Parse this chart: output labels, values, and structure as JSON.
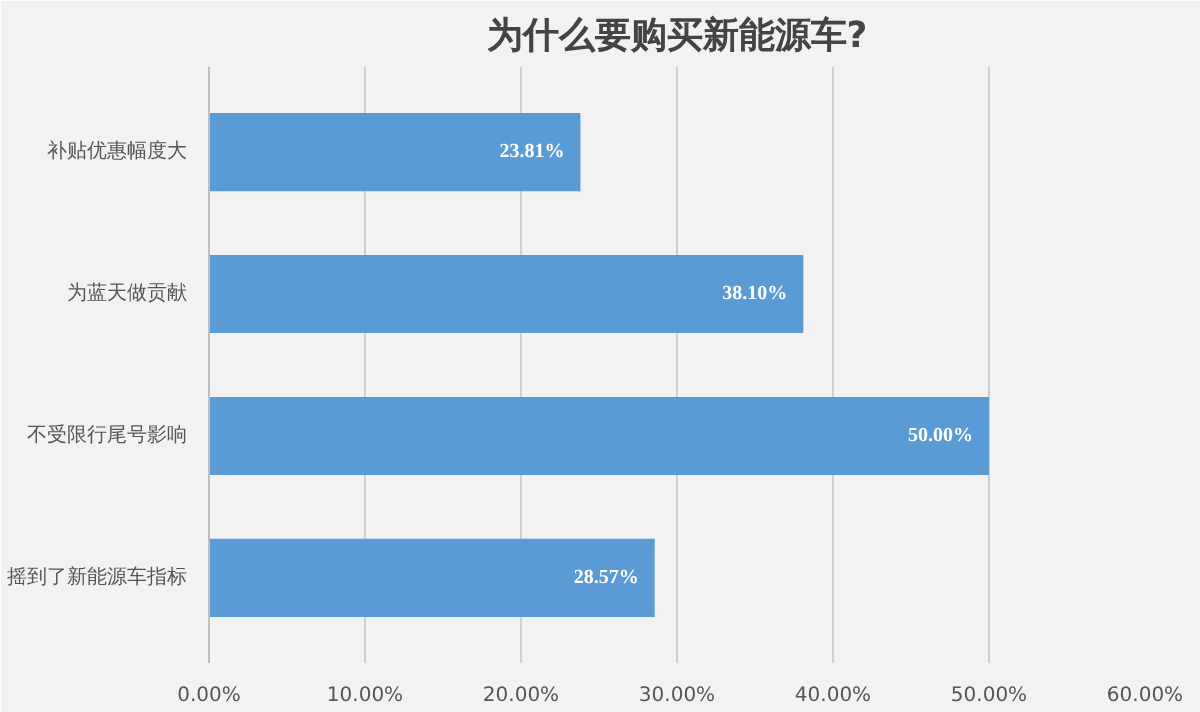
{
  "chart_data": {
    "type": "bar",
    "orientation": "horizontal",
    "title": "为什么要购买新能源车?",
    "categories": [
      "补贴优惠幅度大",
      "为蓝天做贡献",
      "不受限行尾号影响",
      "摇到了新能源车指标"
    ],
    "values": [
      23.81,
      38.1,
      50.0,
      28.57
    ],
    "value_labels": [
      "23.81%",
      "38.10%",
      "50.00%",
      "28.57%"
    ],
    "color": "#5b9bd5",
    "xlim": [
      0,
      60
    ],
    "xticks": [
      {
        "value": 0,
        "label": "0.00%"
      },
      {
        "value": 10,
        "label": "10.00%"
      },
      {
        "value": 20,
        "label": "20.00%"
      },
      {
        "value": 30,
        "label": "30.00%"
      },
      {
        "value": 40,
        "label": "40.00%"
      },
      {
        "value": 50,
        "label": "50.00%"
      },
      {
        "value": 60,
        "label": "60.00%"
      }
    ],
    "grid": "x"
  }
}
